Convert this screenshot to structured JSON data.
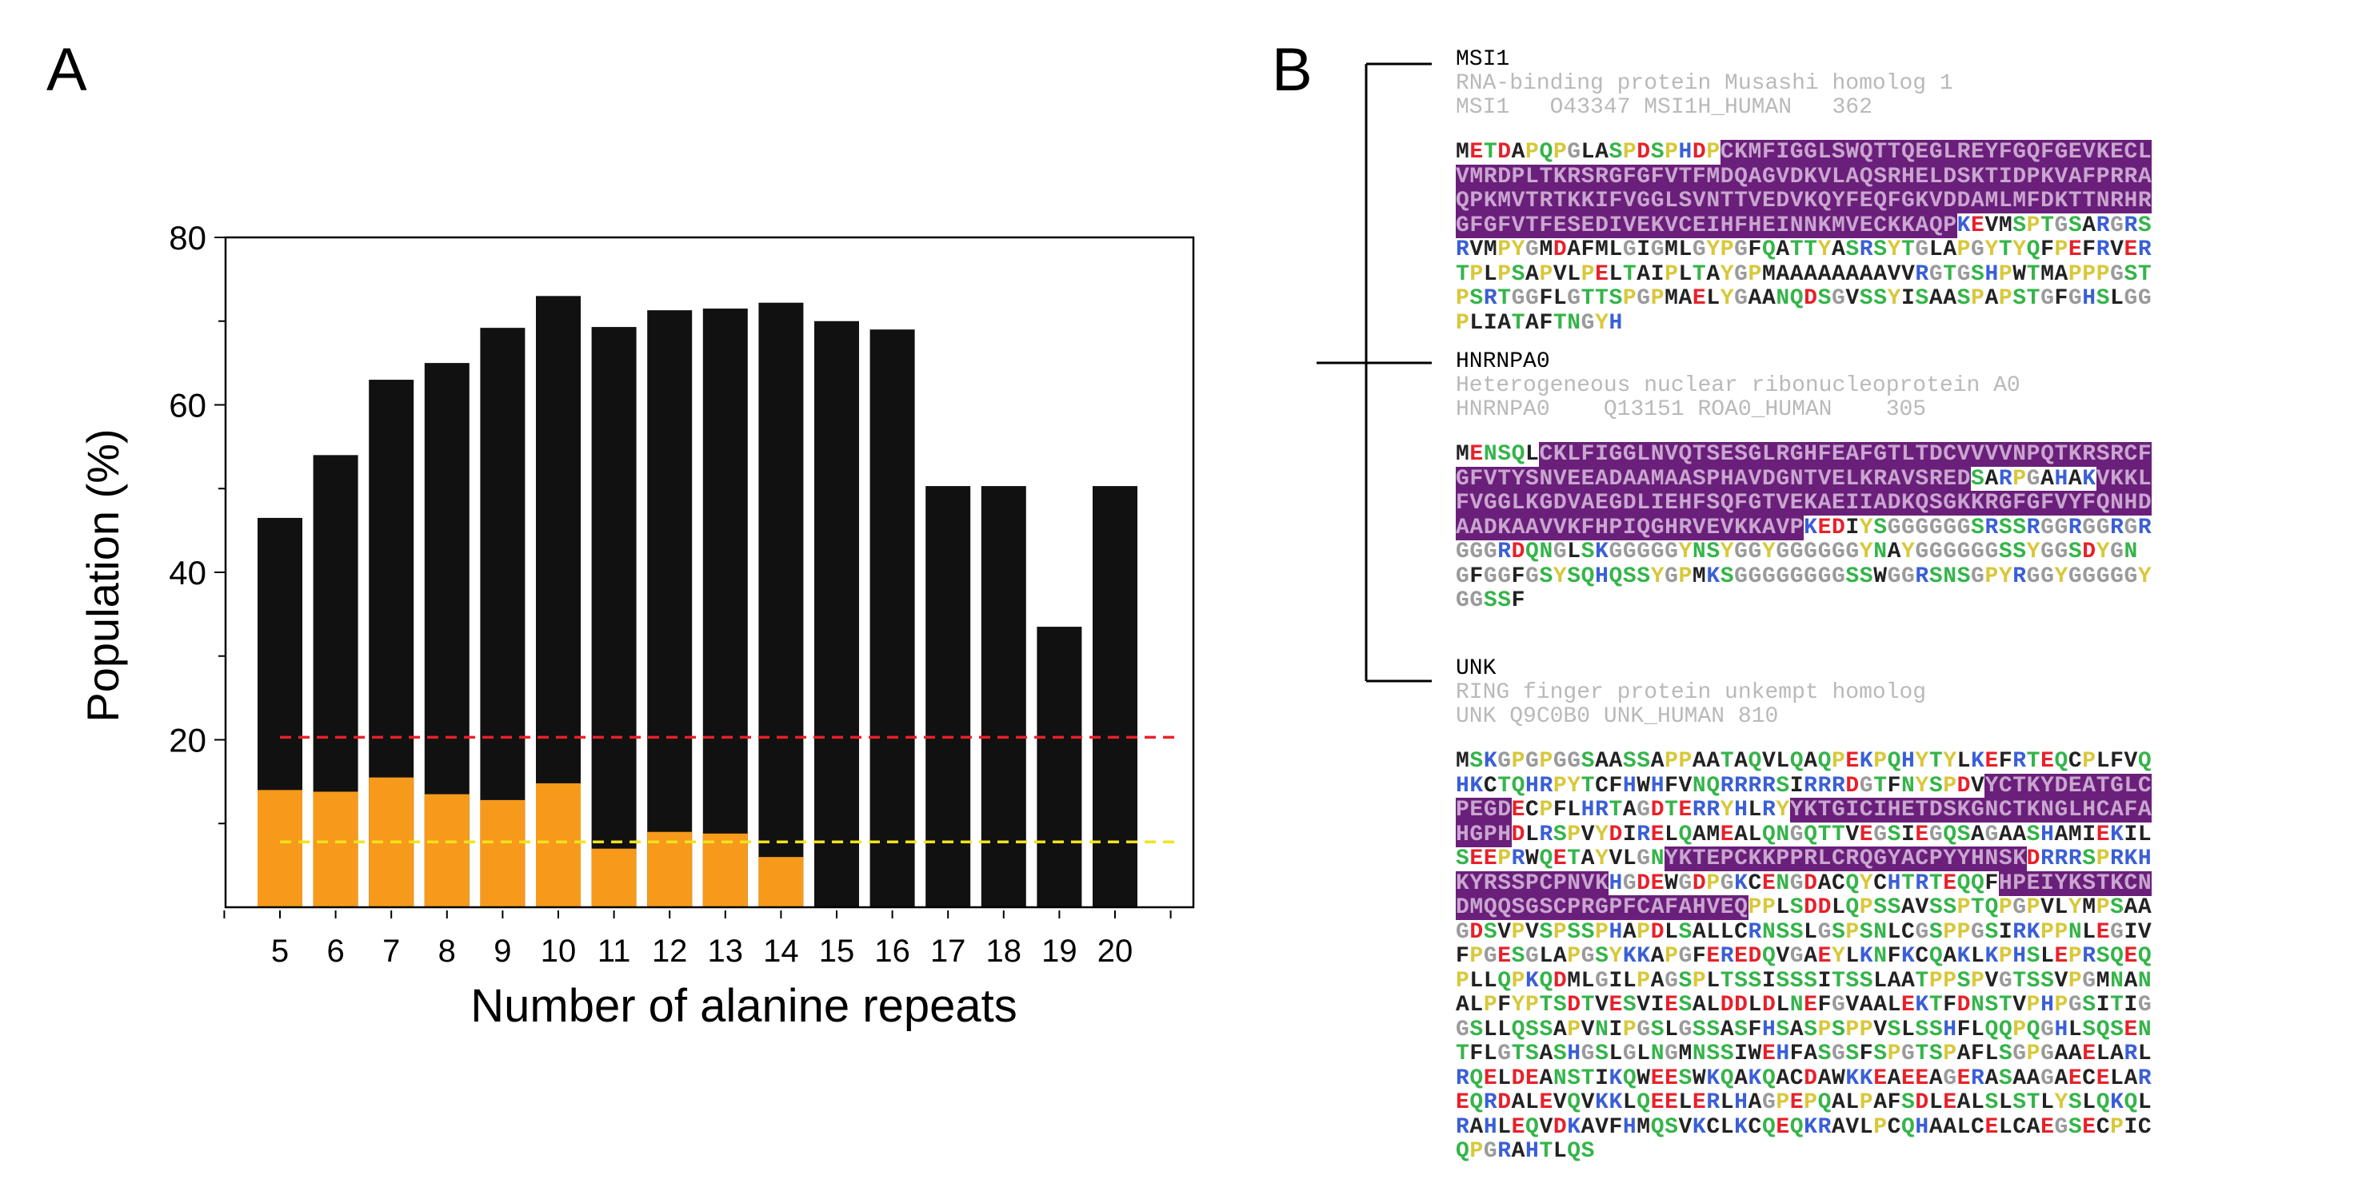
{
  "panels": {
    "a_label": "A",
    "b_label": "B"
  },
  "chart_data": {
    "type": "bar",
    "stacked": true,
    "xlabel": "Number of alanine repeats",
    "ylabel": "Population (%)",
    "categories": [
      "5",
      "6",
      "7",
      "8",
      "9",
      "10",
      "11",
      "12",
      "13",
      "14",
      "15",
      "16",
      "17",
      "18",
      "19",
      "20"
    ],
    "ylim": [
      0,
      80
    ],
    "yticks": [
      "20",
      "40",
      "60",
      "80"
    ],
    "series": [
      {
        "color": "#f79a1b",
        "values": [
          14.0,
          13.8,
          15.5,
          13.5,
          12.8,
          14.8,
          7.0,
          9.0,
          8.8,
          6.0,
          0,
          0,
          0,
          0,
          0,
          0
        ]
      },
      {
        "color": "#111111",
        "values": [
          46.5,
          54.0,
          63.0,
          65.0,
          69.2,
          73.0,
          69.3,
          71.3,
          71.5,
          72.2,
          70.0,
          69.0,
          50.3,
          50.3,
          33.5,
          50.3
        ]
      }
    ],
    "series_mode": "total_heights_for_black_segment",
    "reference_lines": [
      {
        "color": "#e8202a",
        "value": 20.3
      },
      {
        "color": "#f2e21a",
        "value": 7.8
      }
    ],
    "grid": false,
    "legend": "none"
  },
  "proteins": [
    {
      "name": "MSI1",
      "description": "RNA-binding protein Musashi homolog 1",
      "accession": "MSI1   O43347 MSI1H_HUMAN   362",
      "lines": [
        "METDAPQPGLASPDSPHDPCKMFIGGLSWQTTQEGLREYFGQFGEVKECL",
        "VMRDPLTKRSRGFGFVTFMDQAGVDKVLAQSRHELDSKTIDPKVAFPRRA",
        "QPKMVTRTKKIFVGGLSVNTTVEDVKQYFEQFGKVDDAMLMFDKTTNRHR",
        "GFGFVTFESEDIVEKVCEIHFHEINNKMVECKKAQPKEVMSPTGSARGRS",
        "RVMPYGMDAFMLGIGMLGYPGFQATTYASRSYTGLAPGYTYQFPEFRVER",
        "TPLPSAPVLPELTAIPLTAYGPMAAAAAAAAVVRGTGSHPWTMAPPPGST",
        "PSRTGGFLGTTSPGPMAELYGAANQDSGVSSYISAASPAPSTGFGHSLGG",
        "PLIATAFTNGYH"
      ]
    },
    {
      "name": "HNRNPA0",
      "description": "Heterogeneous nuclear ribonucleoprotein A0",
      "accession": "HNRNPA0    Q13151 ROA0_HUMAN    305",
      "lines": [
        "MENSQLCKLFIGGLNVQTSESGLRGHFEAFGTLTDCVVVVNPQTKRSRCF",
        "GFVTYSNVEEADAAMAASPHAVDGNTVELKRAVSREDSARPGAHAKVKKL",
        "FVGGLKGDVAEGDLIEHFSQFGTVEKAEIIADKQSGKKRGFGFVYFQNHD",
        "AADKAAVVKFHPIQGHRVEVKKAVPKEDIYSGGGGGGSRSSRGGRGGRGR",
        "GGGRDQNGLSKGGGGGYNSYGGYGGGGGGYNAYGGGGGGSSYGGSDYGN",
        "GFGGFGSYSQHQSSYGPMKSGGGGGGGGSSWGGRSNSGPYRGGYGGGGGY",
        "GGSSF"
      ]
    },
    {
      "name": "UNK",
      "description": "RING finger protein unkempt homolog",
      "accession": "UNK Q9C0B0 UNK_HUMAN 810",
      "lines": [
        "MSKGPGPGGSAASSAPPAATAQVLQAQPEKPQHYTYLKEFRTEQCPLFVQ",
        "HKCTQHRPYTCFHWHFVNQRRRRSIRRRDGTFNYSPDVYCTKYDEATGLC",
        "PEGDECPFLHRTAGDTERRYHLRYYKTGICIHETDSKGNCTKNGLHCAFA",
        "HGPHDLRSPVYDIRELQAMEALQNGQTTVEGSIEGQSAGAASHAMIEKIL",
        "SEEPRWQETAYVLGNYKTEPCKKPPRLCRQGYACPYYHNSKDRRRSPRKH",
        "KYRSSPCPNVKHGDEWGDPGKCENGDACQYCHTRTEQQFHPEIYKSTKCN",
        "DMQQSGSCPRGPFCAFAHVEQPPLSDDLQPSSAVSSPTQPGPVLYMPSAA",
        "GDSVPVSPSSPHAPDLSALLCRNSSLGSPSNLCGSPPGSIRKPPNLEGIV",
        "FPGESGLAPGSYKKAPGFEREDQVGAEYLKNFKCQAKLKPHSLEPRSQEQ",
        "PLLQPKQDMLGILPAGSPLTSSISSSITSSLAATPPSPVGTSSVPGMNAN",
        "ALPFYPTSDTVESVIESALDDLDLNEFGVAALEKTFDNSTVPHPGSITIG",
        "GSLLQSSAPVNIPGSLGSSASFHSASPSPPVSLSSHFLQQPQGHLSQSEN",
        "TFLGTSASHGSLGLNGMNSSIWEHFASGSFSPGTSPAFLSGPGAAELARL",
        "RQELDEANSTIKQWEESWKQAKQACDAWKKEAEEAGERASAAGAECELAR",
        "EQRDALEVQVKKLQEELERLHAGPEPQALPAFSDLEALSLSTLYSLQKQL",
        "RAHLEQVDKAVFHMQSVKCLKCQEQKRAVLPCQHAALCELCAEGSECPIC",
        "QPGRAHTLQS"
      ]
    }
  ]
}
